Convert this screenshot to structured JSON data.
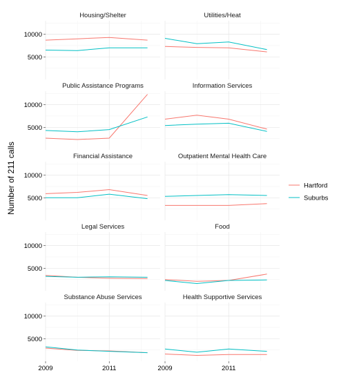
{
  "chart_data": {
    "type": "line",
    "ylabel": "Number of 211 calls",
    "xlabel": "",
    "x_ticks": [
      "2009",
      "2011"
    ],
    "y_ticks": [
      "5000",
      "10000"
    ],
    "x_range": [
      2009,
      2012.6
    ],
    "ylim": [
      0,
      13000
    ],
    "grid": true,
    "legend_position": "right",
    "x": [
      2009,
      2010,
      2011,
      2012.2
    ],
    "colors": {
      "Hartford": "#F8766D",
      "Suburbs": "#00BFC4"
    },
    "series_names": [
      "Hartford",
      "Suburbs"
    ],
    "panels": [
      {
        "title": "Housing/Shelter",
        "series": [
          {
            "name": "Hartford",
            "values": [
              8700,
              9000,
              9300,
              8700
            ]
          },
          {
            "name": "Suburbs",
            "values": [
              6500,
              6400,
              7000,
              7000
            ]
          }
        ]
      },
      {
        "title": "Utilities/Heat",
        "series": [
          {
            "name": "Hartford",
            "values": [
              7300,
              7100,
              7000,
              6100
            ]
          },
          {
            "name": "Suburbs",
            "values": [
              9100,
              7900,
              8300,
              6600
            ]
          }
        ]
      },
      {
        "title": "Public Assistance Programs",
        "series": [
          {
            "name": "Hartford",
            "values": [
              2600,
              2300,
              2600,
              12300
            ]
          },
          {
            "name": "Suburbs",
            "values": [
              4300,
              4000,
              4500,
              7300
            ]
          }
        ]
      },
      {
        "title": "Information Services",
        "series": [
          {
            "name": "Hartford",
            "values": [
              6800,
              7700,
              6800,
              4600
            ]
          },
          {
            "name": "Suburbs",
            "values": [
              5400,
              5700,
              5900,
              4100
            ]
          }
        ]
      },
      {
        "title": "Financial Assistance",
        "series": [
          {
            "name": "Hartford",
            "values": [
              5900,
              6200,
              6800,
              5500
            ]
          },
          {
            "name": "Suburbs",
            "values": [
              5000,
              5000,
              5800,
              4800
            ]
          }
        ]
      },
      {
        "title": "Outpatient Mental Health Care",
        "series": [
          {
            "name": "Hartford",
            "values": [
              3300,
              3300,
              3300,
              3700
            ]
          },
          {
            "name": "Suburbs",
            "values": [
              5300,
              5500,
              5700,
              5500
            ]
          }
        ]
      },
      {
        "title": "Legal Services",
        "series": [
          {
            "name": "Hartford",
            "values": [
              3400,
              3000,
              2800,
              2700
            ]
          },
          {
            "name": "Suburbs",
            "values": [
              3200,
              3000,
              3100,
              3000
            ]
          }
        ]
      },
      {
        "title": "Food",
        "series": [
          {
            "name": "Hartford",
            "values": [
              2500,
              2100,
              2300,
              3700
            ]
          },
          {
            "name": "Suburbs",
            "values": [
              2300,
              1600,
              2300,
              2400
            ]
          }
        ]
      },
      {
        "title": "Substance Abuse Services",
        "series": [
          {
            "name": "Hartford",
            "values": [
              2900,
              2400,
              2300,
              1900
            ]
          },
          {
            "name": "Suburbs",
            "values": [
              3200,
              2500,
              2200,
              1900
            ]
          }
        ]
      },
      {
        "title": "Health Supportive Services",
        "series": [
          {
            "name": "Hartford",
            "values": [
              1600,
              1300,
              1500,
              1500
            ]
          },
          {
            "name": "Suburbs",
            "values": [
              2700,
              2000,
              2700,
              2200
            ]
          }
        ]
      }
    ]
  }
}
